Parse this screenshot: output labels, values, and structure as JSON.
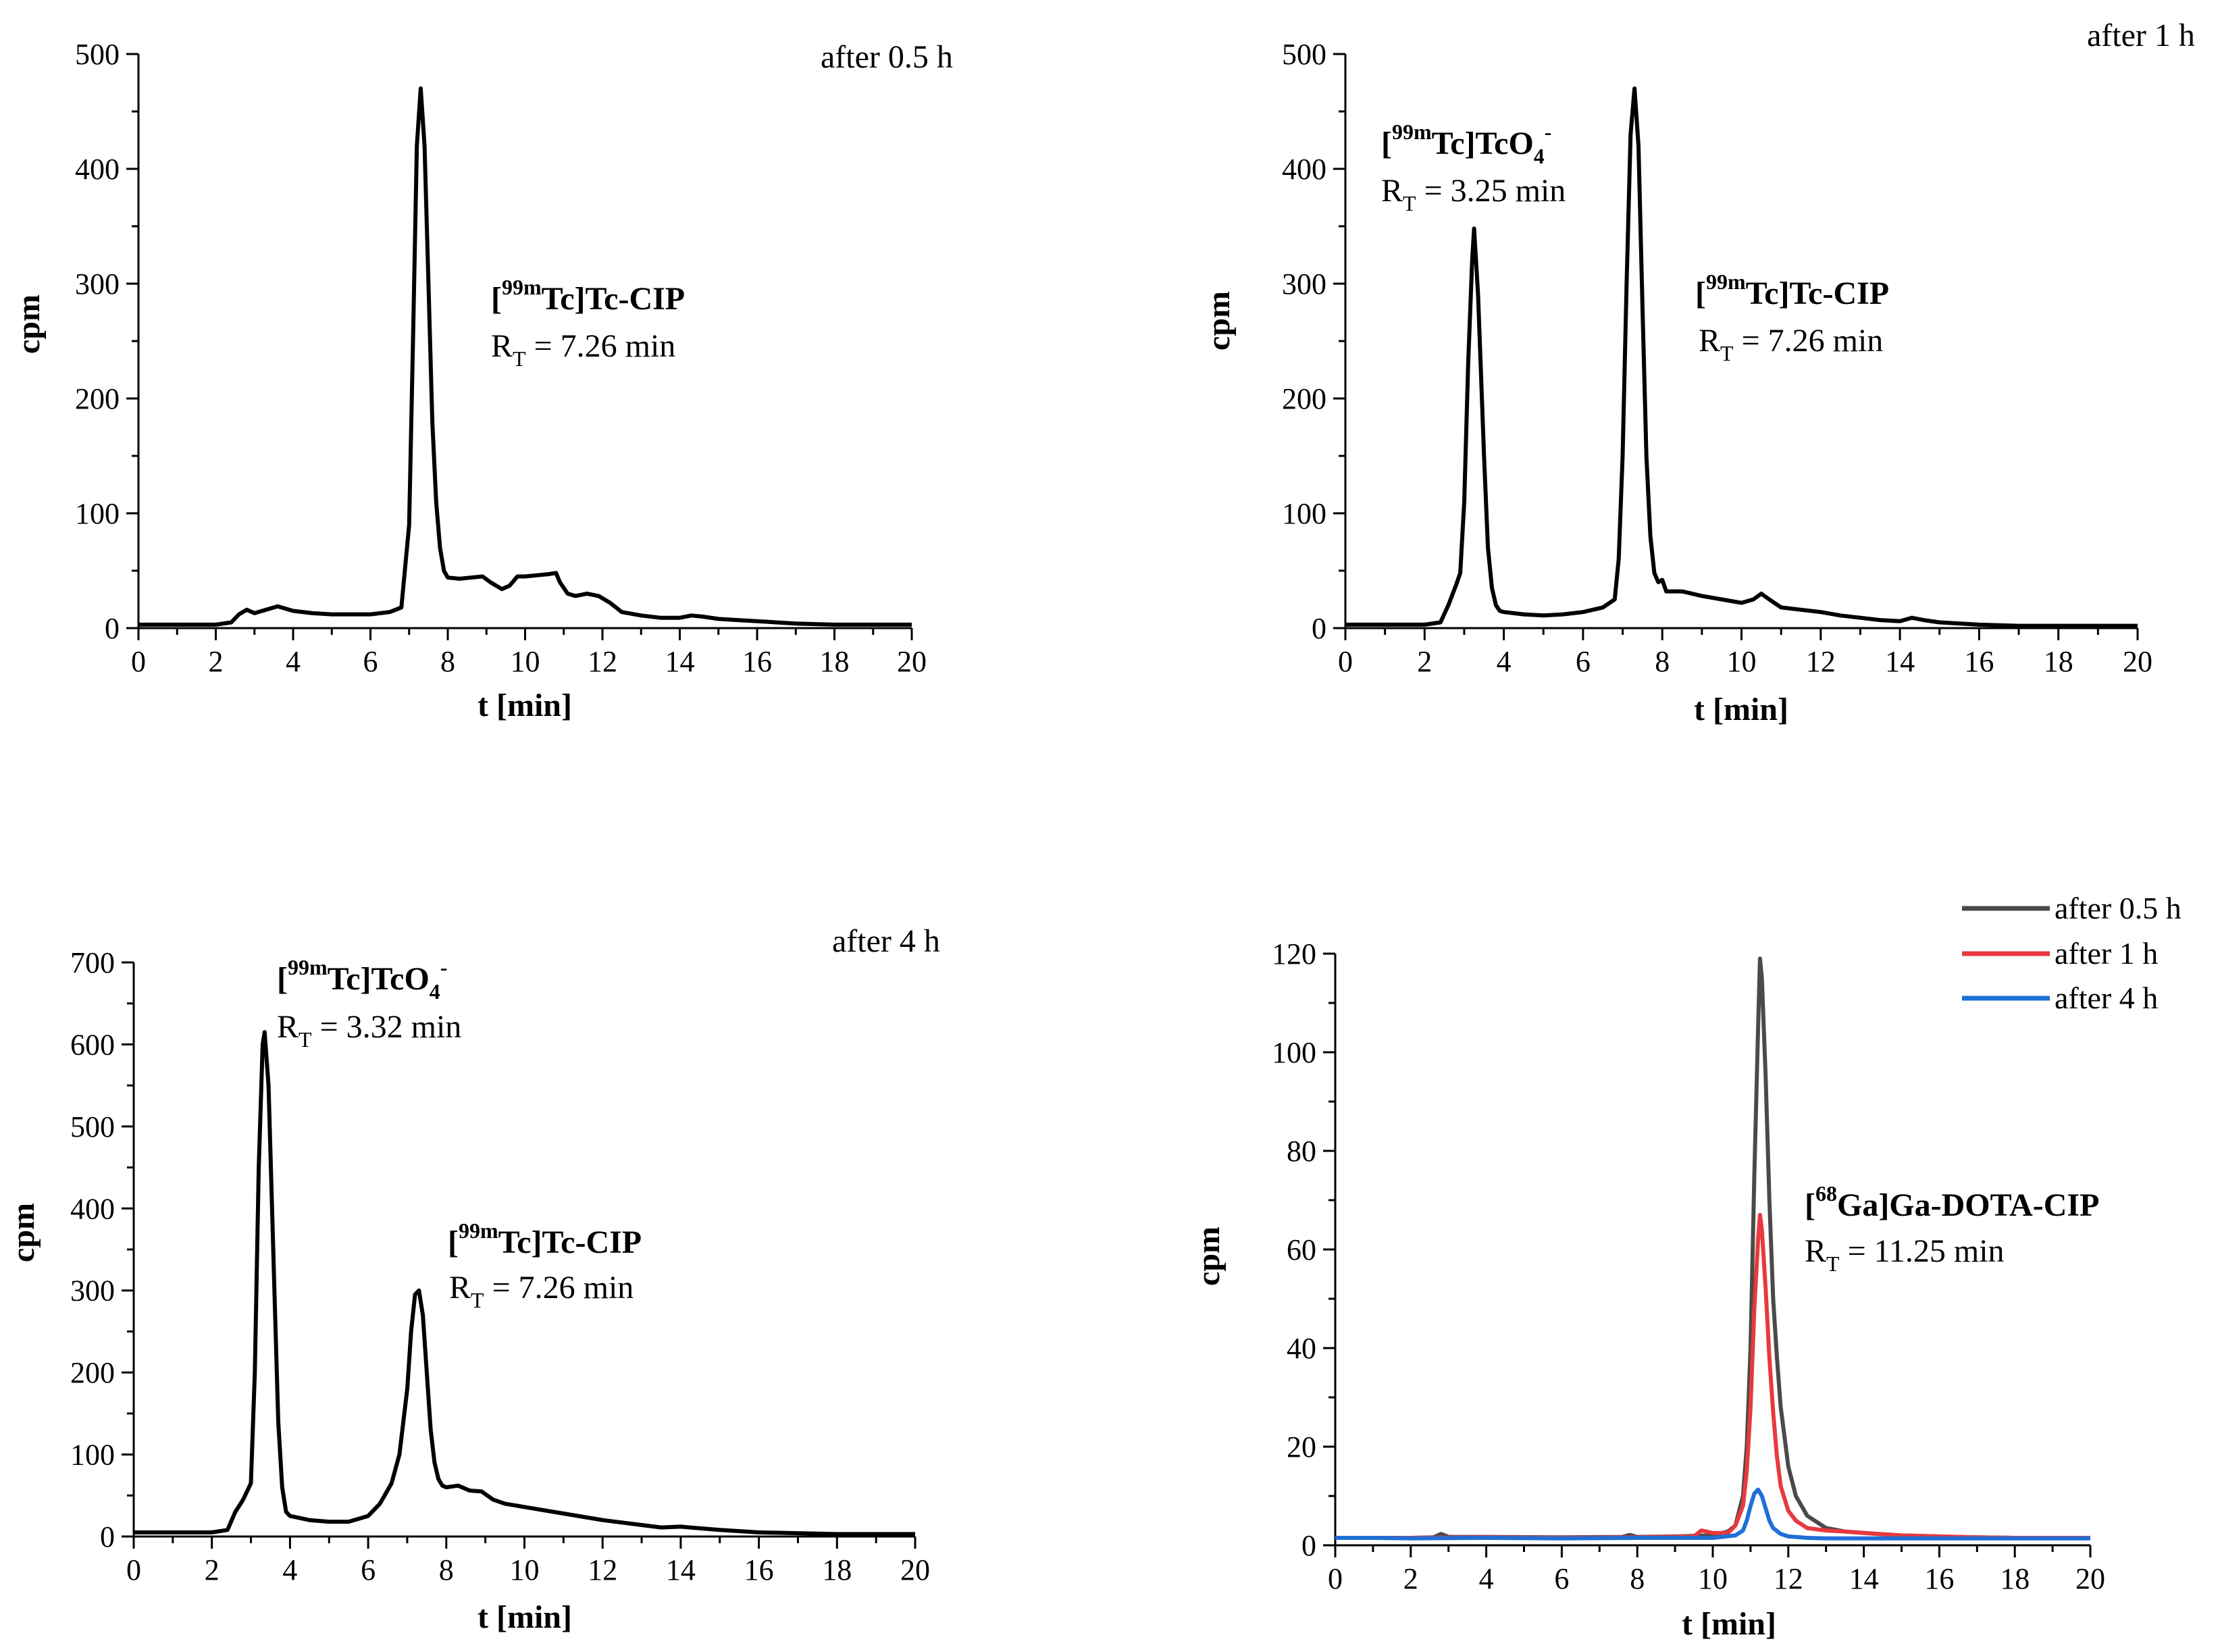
{
  "chart_data": [
    {
      "type": "line",
      "title": "after 0.5 h",
      "xlabel": "t [min]",
      "ylabel": "cpm",
      "xlim": [
        0,
        20
      ],
      "ylim": [
        0,
        500
      ],
      "xticks": [
        0,
        2,
        4,
        6,
        8,
        10,
        12,
        14,
        16,
        18,
        20
      ],
      "yticks": [
        0,
        100,
        200,
        300,
        400,
        500
      ],
      "xticklabels": [
        "0",
        "2",
        "4",
        "6",
        "8",
        "10",
        "12",
        "14",
        "16",
        "18",
        "20"
      ],
      "yticklabels": [
        "0",
        "100",
        "200",
        "300",
        "400",
        "500"
      ],
      "series": [
        {
          "name": "after 0.5 h",
          "color": "#000000",
          "x": [
            0,
            1,
            2,
            2.4,
            2.6,
            2.8,
            3.0,
            3.2,
            3.4,
            3.6,
            4.0,
            4.5,
            5.0,
            5.5,
            6.0,
            6.5,
            6.8,
            7.0,
            7.1,
            7.2,
            7.3,
            7.4,
            7.5,
            7.6,
            7.7,
            7.8,
            7.9,
            8.0,
            8.3,
            8.6,
            8.9,
            9.1,
            9.4,
            9.6,
            9.8,
            10.0,
            10.3,
            10.6,
            10.8,
            10.9,
            11.1,
            11.3,
            11.6,
            11.9,
            12.2,
            12.5,
            13.0,
            13.5,
            14.0,
            14.3,
            14.6,
            15.0,
            15.5,
            16.0,
            17.0,
            18.0,
            19.0,
            20.0
          ],
          "y": [
            3,
            3,
            3,
            5,
            12,
            16,
            13,
            15,
            17,
            19,
            15,
            13,
            12,
            12,
            12,
            14,
            18,
            90,
            250,
            420,
            470,
            420,
            300,
            180,
            110,
            70,
            50,
            44,
            43,
            44,
            45,
            40,
            34,
            37,
            45,
            45,
            46,
            47,
            48,
            40,
            30,
            28,
            30,
            28,
            22,
            14,
            11,
            9,
            9,
            11,
            10,
            8,
            7,
            6,
            4,
            3,
            3,
            3
          ]
        }
      ],
      "annotations": [
        {
          "sup": "99m",
          "name": "Tc]Tc-CIP",
          "rt_label": "R",
          "rt_sub": "T",
          "rt_value": " = 7.26 min"
        }
      ]
    },
    {
      "type": "line",
      "title": "after 1 h",
      "xlabel": "t [min]",
      "ylabel": "cpm",
      "xlim": [
        0,
        20
      ],
      "ylim": [
        0,
        500
      ],
      "xticks": [
        0,
        2,
        4,
        6,
        8,
        10,
        12,
        14,
        16,
        18,
        20
      ],
      "yticks": [
        0,
        100,
        200,
        300,
        400,
        500
      ],
      "xticklabels": [
        "0",
        "2",
        "4",
        "6",
        "8",
        "10",
        "12",
        "14",
        "16",
        "18",
        "20"
      ],
      "yticklabels": [
        "0",
        "100",
        "200",
        "300",
        "400",
        "500"
      ],
      "series": [
        {
          "name": "after 1 h",
          "color": "#000000",
          "x": [
            0,
            1,
            2,
            2.4,
            2.6,
            2.8,
            2.9,
            3.0,
            3.1,
            3.2,
            3.25,
            3.35,
            3.5,
            3.6,
            3.7,
            3.8,
            3.9,
            4.0,
            4.5,
            5.0,
            5.5,
            6.0,
            6.5,
            6.8,
            6.9,
            7.0,
            7.1,
            7.2,
            7.3,
            7.4,
            7.5,
            7.6,
            7.7,
            7.8,
            7.9,
            8.0,
            8.1,
            8.5,
            9.0,
            9.5,
            10.0,
            10.3,
            10.5,
            10.7,
            11.0,
            11.5,
            12.0,
            12.5,
            13.0,
            13.5,
            14.0,
            14.3,
            14.6,
            15.0,
            16.0,
            17.0,
            18.0,
            19.0,
            20.0
          ],
          "y": [
            3,
            3,
            3,
            5,
            20,
            38,
            48,
            110,
            230,
            320,
            348,
            290,
            150,
            70,
            35,
            20,
            15,
            14,
            12,
            11,
            12,
            14,
            18,
            25,
            60,
            150,
            300,
            430,
            470,
            420,
            280,
            150,
            80,
            48,
            40,
            42,
            32,
            32,
            28,
            25,
            22,
            25,
            30,
            25,
            18,
            16,
            14,
            11,
            9,
            7,
            6,
            9,
            7,
            5,
            3,
            2,
            2,
            2,
            2
          ]
        }
      ],
      "annotations": [
        {
          "sup": "99m",
          "name": "Tc]TcO",
          "sub": "4",
          "charge": "-",
          "rt_label": "R",
          "rt_sub": "T",
          "rt_value": " = 3.25 min"
        },
        {
          "sup": "99m",
          "name": "Tc]Tc-CIP",
          "rt_label": "R",
          "rt_sub": "T",
          "rt_value": " = 7.26 min"
        }
      ]
    },
    {
      "type": "line",
      "title": "after 4 h",
      "xlabel": "t [min]",
      "ylabel": "cpm",
      "xlim": [
        0,
        20
      ],
      "ylim": [
        0,
        700
      ],
      "xticks": [
        0,
        2,
        4,
        6,
        8,
        10,
        12,
        14,
        16,
        18,
        20
      ],
      "yticks": [
        0,
        100,
        200,
        300,
        400,
        500,
        600,
        700
      ],
      "xticklabels": [
        "0",
        "2",
        "4",
        "6",
        "8",
        "10",
        "12",
        "14",
        "16",
        "18",
        "20"
      ],
      "yticklabels": [
        "0",
        "100",
        "200",
        "300",
        "400",
        "500",
        "600",
        "700"
      ],
      "series": [
        {
          "name": "after 4 h",
          "color": "#000000",
          "x": [
            0,
            1,
            2,
            2.4,
            2.6,
            2.8,
            3.0,
            3.1,
            3.2,
            3.3,
            3.35,
            3.45,
            3.6,
            3.7,
            3.8,
            3.9,
            4.0,
            4.5,
            5.0,
            5.5,
            6.0,
            6.3,
            6.6,
            6.8,
            7.0,
            7.1,
            7.2,
            7.3,
            7.4,
            7.5,
            7.6,
            7.7,
            7.8,
            7.9,
            8.0,
            8.3,
            8.6,
            8.9,
            9.2,
            9.5,
            10.0,
            11.0,
            12.0,
            13.0,
            13.5,
            14.0,
            14.5,
            15.0,
            16.0,
            17.0,
            18.0,
            19.0,
            20.0
          ],
          "y": [
            5,
            5,
            5,
            8,
            30,
            45,
            65,
            200,
            450,
            600,
            615,
            550,
            300,
            140,
            60,
            30,
            25,
            20,
            18,
            18,
            25,
            40,
            65,
            100,
            180,
            250,
            295,
            300,
            270,
            200,
            130,
            90,
            70,
            62,
            60,
            62,
            56,
            55,
            45,
            40,
            36,
            28,
            20,
            14,
            11,
            12,
            10,
            8,
            5,
            4,
            3,
            3,
            3
          ]
        }
      ],
      "annotations": [
        {
          "sup": "99m",
          "name": "Tc]TcO",
          "sub": "4",
          "charge": "-",
          "rt_label": "R",
          "rt_sub": "T",
          "rt_value": " = 3.32 min"
        },
        {
          "sup": "99m",
          "name": "Tc]Tc-CIP",
          "rt_label": "R",
          "rt_sub": "T",
          "rt_value": " = 7.26 min"
        }
      ]
    },
    {
      "type": "line",
      "title": "",
      "xlabel": "t [min]",
      "ylabel": "cpm",
      "xlim": [
        0,
        20
      ],
      "ylim": [
        0,
        120
      ],
      "xticks": [
        0,
        2,
        4,
        6,
        8,
        10,
        12,
        14,
        16,
        18,
        20
      ],
      "yticks": [
        0,
        20,
        40,
        60,
        80,
        100,
        120
      ],
      "xticklabels": [
        "0",
        "2",
        "4",
        "6",
        "8",
        "10",
        "12",
        "14",
        "16",
        "18",
        "20"
      ],
      "yticklabels": [
        "0",
        "20",
        "40",
        "60",
        "80",
        "100",
        "120"
      ],
      "legend": "top-right",
      "series": [
        {
          "name": "after 0.5 h",
          "color": "#4a4a4a",
          "x": [
            0,
            1,
            2,
            2.6,
            2.8,
            3.0,
            4.0,
            6.0,
            7.6,
            7.8,
            8.0,
            9.0,
            10.0,
            10.4,
            10.6,
            10.8,
            10.9,
            11.0,
            11.1,
            11.2,
            11.25,
            11.3,
            11.4,
            11.5,
            11.6,
            11.7,
            11.8,
            12.0,
            12.2,
            12.5,
            13.0,
            13.5,
            14.0,
            15.0,
            16.0,
            17.0,
            18.0,
            19.0,
            20.0
          ],
          "y": [
            1.5,
            1.5,
            1.5,
            1.6,
            2.3,
            1.7,
            1.7,
            1.6,
            1.7,
            2.1,
            1.7,
            1.8,
            2.0,
            2.8,
            4.0,
            10,
            20,
            40,
            75,
            105,
            119,
            115,
            95,
            70,
            50,
            38,
            28,
            16,
            10,
            6,
            3.5,
            2.8,
            2.5,
            2.0,
            1.8,
            1.6,
            1.5,
            1.5,
            1.5
          ]
        },
        {
          "name": "after 1 h",
          "color": "#e8393f",
          "x": [
            0,
            1,
            2,
            4,
            6,
            8,
            9.5,
            9.7,
            10.0,
            10.4,
            10.6,
            10.8,
            10.9,
            11.0,
            11.1,
            11.2,
            11.25,
            11.3,
            11.4,
            11.5,
            11.6,
            11.7,
            11.8,
            12.0,
            12.2,
            12.5,
            13.0,
            13.5,
            14.0,
            15.0,
            16.0,
            17.0,
            18.0,
            19.0,
            20.0
          ],
          "y": [
            1.5,
            1.5,
            1.5,
            1.6,
            1.5,
            1.6,
            1.8,
            3.0,
            2.5,
            2.5,
            4.0,
            8,
            15,
            28,
            48,
            62,
            67,
            64,
            52,
            38,
            27,
            18,
            12,
            7,
            5,
            3.5,
            3.0,
            2.8,
            2.5,
            2.0,
            1.8,
            1.6,
            1.5,
            1.5,
            1.5
          ]
        },
        {
          "name": "after 4 h",
          "color": "#1f6fd6",
          "x": [
            0,
            1,
            2,
            4,
            6,
            8,
            10.0,
            10.6,
            10.8,
            10.9,
            11.0,
            11.1,
            11.2,
            11.3,
            11.4,
            11.5,
            11.6,
            11.8,
            12.0,
            12.5,
            13.0,
            14.0,
            15.0,
            16.0,
            17.0,
            18.0,
            19.0,
            20.0
          ],
          "y": [
            1.5,
            1.5,
            1.4,
            1.5,
            1.4,
            1.5,
            1.5,
            2.0,
            3.0,
            5.0,
            8.0,
            10.5,
            11.3,
            10,
            7.5,
            5.0,
            3.5,
            2.3,
            1.8,
            1.5,
            1.4,
            1.4,
            1.4,
            1.4,
            1.4,
            1.4,
            1.4,
            1.4
          ]
        }
      ],
      "annotations": [
        {
          "sup": "68",
          "name": "Ga]Ga-DOTA-CIP",
          "rt_label": "R",
          "rt_sub": "T",
          "rt_value": " = 11.25 min"
        }
      ]
    }
  ]
}
